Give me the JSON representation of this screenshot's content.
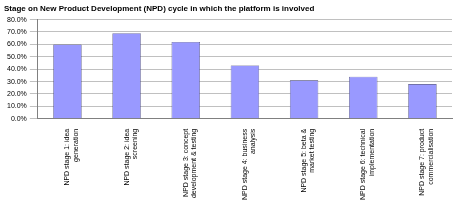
{
  "chart_data": {
    "type": "bar",
    "title": "Stage on New Product Development (NPD) cycle in which the platform is involved",
    "categories": [
      "NPD stage 1: idea generation",
      "NPD stage 2: idea screening",
      "NPD stage 3: concept development & testing",
      "NPD stage 4: business analysis",
      "NPD stage 5: beta & market testing",
      "NPD stage 6: technical implementation",
      "NPD stage 7: product commercialisation"
    ],
    "values": [
      60,
      69,
      62,
      43,
      31,
      34,
      28
    ],
    "color": "#9999ff",
    "ylim": [
      0,
      80
    ],
    "yticks": [
      {
        "value": 0,
        "label": "0.0%"
      },
      {
        "value": 10,
        "label": "10.0%"
      },
      {
        "value": 20,
        "label": "20.0%"
      },
      {
        "value": 30,
        "label": "30.0%"
      },
      {
        "value": 40,
        "label": "40.0%"
      },
      {
        "value": 50,
        "label": "50.0%"
      },
      {
        "value": 60,
        "label": "60.0%"
      },
      {
        "value": 70,
        "label": "70.0%"
      },
      {
        "value": 80,
        "label": "80.0%"
      }
    ],
    "grid": true
  }
}
